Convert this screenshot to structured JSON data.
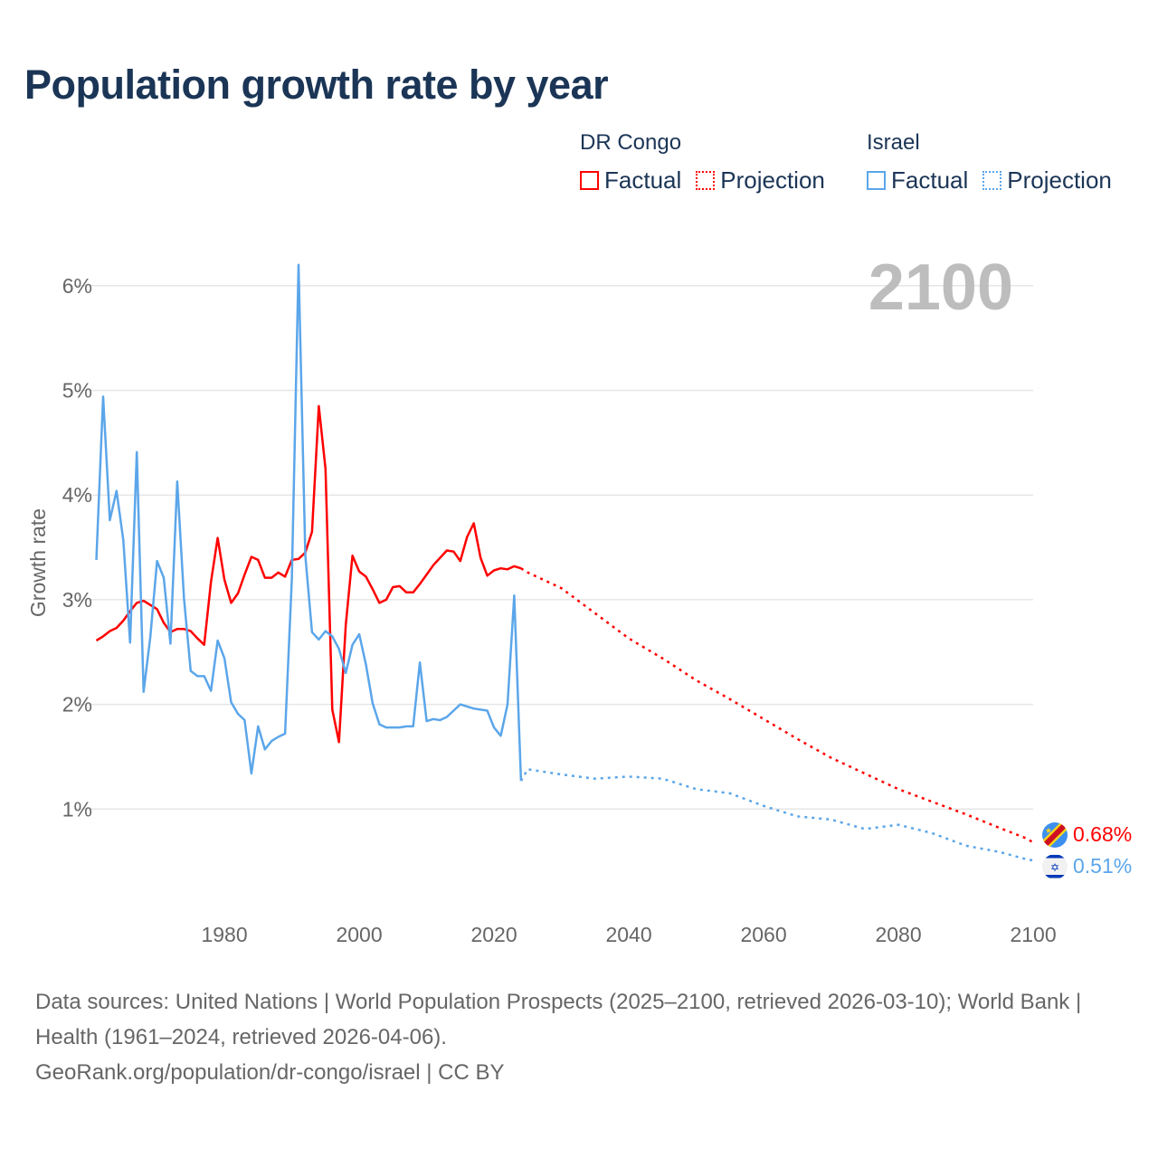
{
  "title": "Population growth rate by year",
  "legend": {
    "groups": [
      {
        "country": "DR Congo",
        "color": "#ff0000",
        "factual": "Factual",
        "projection": "Projection"
      },
      {
        "country": "Israel",
        "color": "#5ba6ea",
        "factual": "Factual",
        "projection": "Projection"
      }
    ]
  },
  "watermark_year": "2100",
  "footer": {
    "sources": "Data sources: United Nations | World Population Prospects (2025–2100, retrieved 2026-03-10); World Bank | Health (1961–2024, retrieved 2026-04-06).",
    "link": "GeoRank.org/population/dr-congo/israel | CC BY"
  },
  "chart_data": {
    "type": "line",
    "title": "Population growth rate by year",
    "xlabel": "",
    "ylabel": "Growth rate",
    "xlim": [
      1961,
      2100
    ],
    "ylim": [
      0,
      6.2
    ],
    "x_ticks": [
      1980,
      2000,
      2020,
      2040,
      2060,
      2080,
      2100
    ],
    "y_ticks": [
      1,
      2,
      3,
      4,
      5,
      6
    ],
    "y_tick_labels": [
      "1%",
      "2%",
      "3%",
      "4%",
      "5%",
      "6%"
    ],
    "grid": true,
    "legend_position": "top-right",
    "series": [
      {
        "name": "DR Congo",
        "color": "#ff0000",
        "end_label": "0.68%",
        "factual": {
          "x_start": 1961,
          "values": [
            2.61,
            2.65,
            2.7,
            2.73,
            2.8,
            2.89,
            2.97,
            2.99,
            2.95,
            2.91,
            2.78,
            2.69,
            2.72,
            2.72,
            2.7,
            2.63,
            2.57,
            3.17,
            3.59,
            3.19,
            2.97,
            3.06,
            3.24,
            3.41,
            3.38,
            3.21,
            3.21,
            3.26,
            3.22,
            3.38,
            3.39,
            3.45,
            3.65,
            4.85,
            4.25,
            1.95,
            1.64,
            2.76,
            3.42,
            3.27,
            3.22,
            3.1,
            2.97,
            3.0,
            3.12,
            3.13,
            3.07,
            3.07,
            3.15,
            3.24,
            3.33,
            3.4,
            3.47,
            3.46,
            3.37,
            3.6,
            3.73,
            3.4,
            3.23,
            3.28,
            3.3,
            3.29,
            3.32,
            3.3
          ]
        },
        "projection": {
          "x": [
            2024,
            2025,
            2030,
            2035,
            2040,
            2045,
            2050,
            2055,
            2060,
            2065,
            2070,
            2075,
            2080,
            2085,
            2090,
            2095,
            2099,
            2100
          ],
          "values": [
            3.3,
            3.26,
            3.11,
            2.87,
            2.63,
            2.44,
            2.23,
            2.05,
            1.86,
            1.67,
            1.49,
            1.34,
            1.19,
            1.07,
            0.95,
            0.82,
            0.72,
            0.68
          ]
        }
      },
      {
        "name": "Israel",
        "color": "#5ba6ea",
        "end_label": "0.51%",
        "factual": {
          "x_start": 1961,
          "values": [
            3.38,
            4.94,
            3.76,
            4.04,
            3.57,
            2.59,
            4.41,
            2.12,
            2.64,
            3.37,
            3.21,
            2.58,
            4.13,
            3.01,
            2.32,
            2.27,
            2.27,
            2.13,
            2.61,
            2.44,
            2.02,
            1.91,
            1.85,
            1.34,
            1.79,
            1.57,
            1.65,
            1.69,
            1.72,
            3.2,
            6.2,
            3.42,
            2.69,
            2.62,
            2.7,
            2.65,
            2.53,
            2.3,
            2.57,
            2.67,
            2.38,
            2.01,
            1.81,
            1.78,
            1.78,
            1.78,
            1.79,
            1.79,
            2.4,
            1.84,
            1.86,
            1.85,
            1.88,
            1.94,
            2.0,
            1.98,
            1.96,
            1.95,
            1.94,
            1.78,
            1.7,
            2.0,
            3.04,
            1.27
          ]
        },
        "projection": {
          "x": [
            2024,
            2025,
            2030,
            2035,
            2040,
            2045,
            2050,
            2055,
            2060,
            2065,
            2070,
            2075,
            2080,
            2085,
            2090,
            2095,
            2099,
            2100
          ],
          "values": [
            1.27,
            1.38,
            1.33,
            1.29,
            1.31,
            1.29,
            1.19,
            1.15,
            1.03,
            0.93,
            0.9,
            0.81,
            0.85,
            0.77,
            0.65,
            0.59,
            0.52,
            0.51
          ]
        }
      }
    ]
  }
}
